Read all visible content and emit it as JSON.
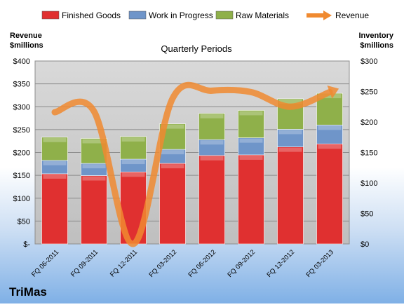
{
  "chart_data": {
    "type": "bar",
    "subtitle": "Quarterly Periods",
    "brand": "TriMas",
    "left_axis": {
      "label": [
        "Revenue",
        "$millions"
      ],
      "range": [
        0,
        400
      ],
      "ticks": [
        "$-",
        "$50",
        "$100",
        "$150",
        "$200",
        "$250",
        "$300",
        "$350",
        "$400"
      ]
    },
    "right_axis": {
      "label": [
        "Inventory",
        "$millions"
      ],
      "range": [
        0,
        300
      ],
      "ticks": [
        "$0",
        "$50",
        "$100",
        "$150",
        "$200",
        "$250",
        "$300"
      ]
    },
    "categories": [
      "FQ 06-2011",
      "FQ 09-2011",
      "FQ 12-2011",
      "FQ 03-2012",
      "FQ 06-2012",
      "FQ 09-2012",
      "FQ 12-2012",
      "FQ 03-2013"
    ],
    "stacked_series": [
      {
        "name": "Finished Goods",
        "axis": "right",
        "color": "#e03030",
        "values": [
          115,
          112,
          118,
          132,
          145,
          146,
          159,
          164
        ]
      },
      {
        "name": "Work in Progress",
        "axis": "right",
        "color": "#6f95c9",
        "values": [
          22,
          20,
          21,
          23,
          26,
          28,
          29,
          31
        ]
      },
      {
        "name": "Raw Materials",
        "axis": "right",
        "color": "#8fb04a",
        "values": [
          38,
          41,
          37,
          42,
          43,
          45,
          50,
          52
        ]
      }
    ],
    "line_series": [
      {
        "name": "Revenue",
        "axis": "left",
        "color": "#f08a30",
        "values": [
          288,
          290,
          0,
          318,
          335,
          332,
          300,
          332
        ]
      }
    ],
    "legend_placement": "top",
    "grid": true
  }
}
